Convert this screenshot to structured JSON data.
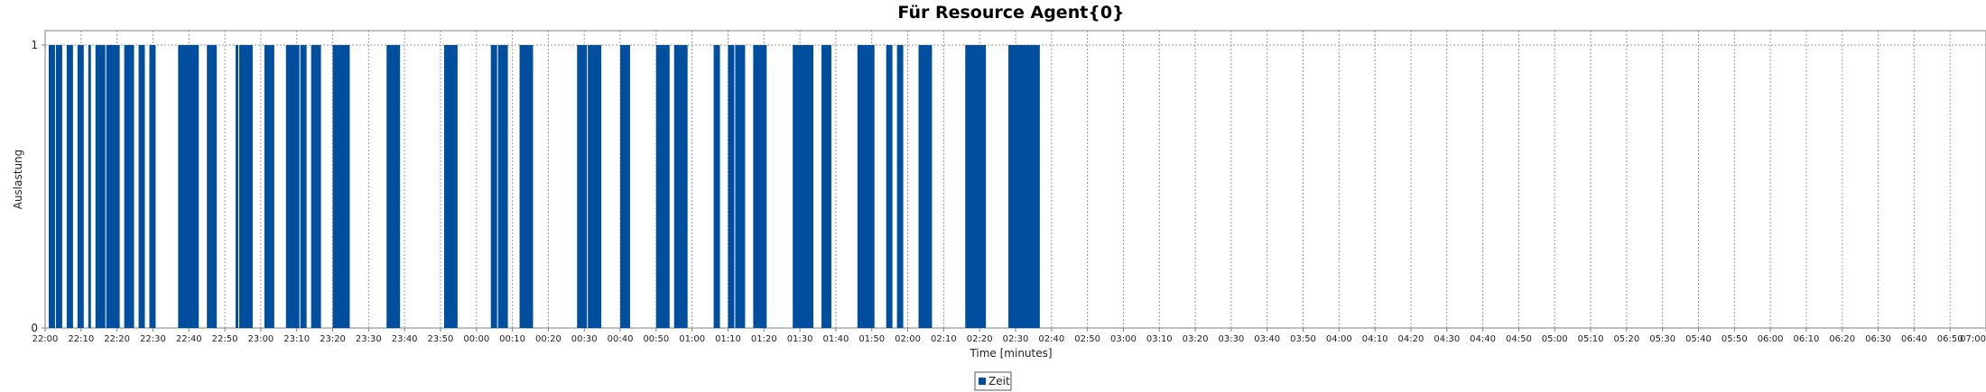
{
  "chart_data": {
    "type": "bar",
    "title": "Für Resource Agent{0}",
    "xlabel": "Time [minutes]",
    "ylabel": "Auslastung",
    "ylim": [
      0,
      1
    ],
    "yticks": [
      "0",
      "1"
    ],
    "xlim": [
      "22:00",
      "07:00"
    ],
    "xticks": [
      "22:00",
      "22:10",
      "22:20",
      "22:30",
      "22:40",
      "22:50",
      "23:00",
      "23:10",
      "23:20",
      "23:30",
      "23:40",
      "23:50",
      "00:00",
      "00:10",
      "00:20",
      "00:30",
      "00:40",
      "00:50",
      "01:00",
      "01:10",
      "01:20",
      "01:30",
      "01:40",
      "01:50",
      "02:00",
      "02:10",
      "02:20",
      "02:30",
      "02:40",
      "02:50",
      "03:00",
      "03:10",
      "03:20",
      "03:30",
      "03:40",
      "03:50",
      "04:00",
      "04:10",
      "04:20",
      "04:30",
      "04:40",
      "04:50",
      "05:00",
      "05:10",
      "05:20",
      "05:30",
      "05:40",
      "05:50",
      "06:00",
      "06:10",
      "06:20",
      "06:30",
      "06:40",
      "06:50",
      "07:00"
    ],
    "grid": true,
    "legend_position": "bottom-center",
    "series": [
      {
        "name": "Zeit",
        "color": "#004f9e",
        "intervals": [
          [
            "22:01",
            "22:03"
          ],
          [
            "22:03",
            "22:05"
          ],
          [
            "22:06",
            "22:08"
          ],
          [
            "22:09",
            "22:11"
          ],
          [
            "22:12",
            "22:13"
          ],
          [
            "22:14",
            "22:17"
          ],
          [
            "22:17",
            "22:21"
          ],
          [
            "22:22",
            "22:25"
          ],
          [
            "22:26",
            "22:28"
          ],
          [
            "22:29",
            "22:31"
          ],
          [
            "22:37",
            "22:43"
          ],
          [
            "22:45",
            "22:48"
          ],
          [
            "22:53",
            "22:54"
          ],
          [
            "22:54",
            "22:58"
          ],
          [
            "23:01",
            "23:04"
          ],
          [
            "23:07",
            "23:11"
          ],
          [
            "23:11",
            "23:13"
          ],
          [
            "23:14",
            "23:17"
          ],
          [
            "23:20",
            "23:25"
          ],
          [
            "23:35",
            "23:39"
          ],
          [
            "23:51",
            "23:55"
          ],
          [
            "00:04",
            "00:06"
          ],
          [
            "00:06",
            "00:09"
          ],
          [
            "00:12",
            "00:16"
          ],
          [
            "00:28",
            "00:31"
          ],
          [
            "00:31",
            "00:35"
          ],
          [
            "00:40",
            "00:43"
          ],
          [
            "00:50",
            "00:54"
          ],
          [
            "00:55",
            "00:59"
          ],
          [
            "01:06",
            "01:08"
          ],
          [
            "01:10",
            "01:12"
          ],
          [
            "01:12",
            "01:15"
          ],
          [
            "01:17",
            "01:21"
          ],
          [
            "01:28",
            "01:34"
          ],
          [
            "01:36",
            "01:39"
          ],
          [
            "01:46",
            "01:51"
          ],
          [
            "01:54",
            "01:56"
          ],
          [
            "01:57",
            "01:59"
          ],
          [
            "02:03",
            "02:07"
          ],
          [
            "02:16",
            "02:22"
          ],
          [
            "02:28",
            "02:37"
          ]
        ]
      }
    ]
  }
}
